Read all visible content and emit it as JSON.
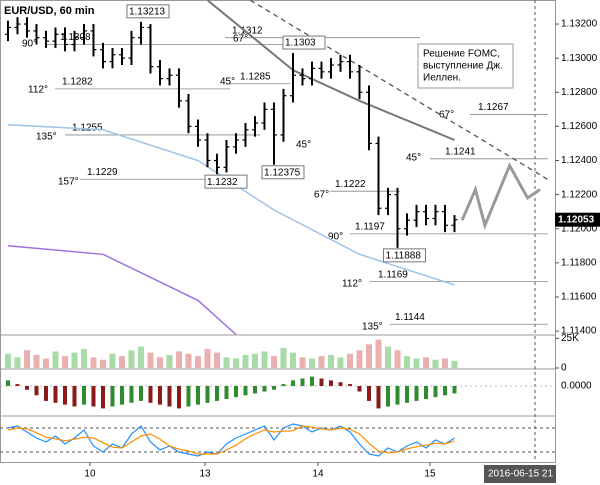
{
  "chart_data": {
    "type": "candlestick",
    "title": "EUR/USD, 60 min",
    "candles": {
      "open": [
        1.1314,
        1.1318,
        1.132,
        1.1316,
        1.1312,
        1.131,
        1.1314,
        1.1308,
        1.1312,
        1.1316,
        1.1305,
        1.1298,
        1.1302,
        1.13,
        1.1312,
        1.1318,
        1.1295,
        1.1288,
        1.129,
        1.1275,
        1.126,
        1.1252,
        1.124,
        1.1236,
        1.1248,
        1.1252,
        1.1258,
        1.1262,
        1.127,
        1.1255,
        1.1278,
        1.129,
        1.1288,
        1.1294,
        1.1292,
        1.1296,
        1.1298,
        1.1292,
        1.128,
        1.125,
        1.1212,
        1.122,
        1.12,
        1.1205,
        1.121,
        1.1206,
        1.121,
        1.1202
      ],
      "high": [
        1.1322,
        1.1324,
        1.1324,
        1.132,
        1.1316,
        1.1318,
        1.1318,
        1.1316,
        1.132,
        1.132,
        1.1309,
        1.1306,
        1.1306,
        1.1316,
        1.13213,
        1.132,
        1.1299,
        1.1294,
        1.1294,
        1.1279,
        1.1264,
        1.1256,
        1.1244,
        1.1252,
        1.1256,
        1.1262,
        1.1266,
        1.1274,
        1.1274,
        1.1282,
        1.1303,
        1.1294,
        1.1298,
        1.1298,
        1.13,
        1.1302,
        1.1302,
        1.1296,
        1.1284,
        1.1254,
        1.1224,
        1.1224,
        1.1209,
        1.1214,
        1.1214,
        1.1214,
        1.1214,
        1.1208
      ],
      "low": [
        1.131,
        1.1314,
        1.1312,
        1.1308,
        1.1306,
        1.1306,
        1.1304,
        1.1304,
        1.1308,
        1.1301,
        1.1294,
        1.1294,
        1.1296,
        1.1296,
        1.1308,
        1.1291,
        1.1284,
        1.1284,
        1.1271,
        1.1256,
        1.1248,
        1.1236,
        1.1232,
        1.1233,
        1.1244,
        1.1248,
        1.1254,
        1.1258,
        1.12375,
        1.1251,
        1.1274,
        1.1284,
        1.1284,
        1.1288,
        1.1288,
        1.1292,
        1.1288,
        1.1276,
        1.1246,
        1.1208,
        1.1208,
        1.11888,
        1.1196,
        1.1201,
        1.1202,
        1.1202,
        1.1198,
        1.1198
      ],
      "close": [
        1.1318,
        1.132,
        1.1316,
        1.1312,
        1.131,
        1.1314,
        1.1308,
        1.1312,
        1.1316,
        1.1305,
        1.1298,
        1.1302,
        1.13,
        1.1312,
        1.1318,
        1.1295,
        1.1288,
        1.129,
        1.1275,
        1.126,
        1.1252,
        1.124,
        1.1236,
        1.1248,
        1.1252,
        1.1258,
        1.1262,
        1.127,
        1.1255,
        1.1278,
        1.129,
        1.1288,
        1.1294,
        1.1292,
        1.1296,
        1.1298,
        1.1292,
        1.128,
        1.125,
        1.1212,
        1.122,
        1.12,
        1.1205,
        1.121,
        1.1206,
        1.121,
        1.1202,
        1.12053
      ],
      "color": "#000000"
    },
    "xlim": [
      -0.84,
      57.58
    ],
    "xticks": [
      {
        "value": 8.63,
        "label": "10"
      },
      {
        "value": 20.74,
        "label": "13"
      },
      {
        "value": 32.63,
        "label": "14"
      },
      {
        "value": 44.42,
        "label": "15"
      }
    ],
    "x_end_label": "2016-06-15 21",
    "ylim": [
      1.11377,
      1.13341
    ],
    "yticks": [
      {
        "value": 1.132,
        "label": "1.13200"
      },
      {
        "value": 1.13,
        "label": "1.13000"
      },
      {
        "value": 1.128,
        "label": "1.12800"
      },
      {
        "value": 1.126,
        "label": "1.12600"
      },
      {
        "value": 1.124,
        "label": "1.12400"
      },
      {
        "value": 1.122,
        "label": "1.12200"
      },
      {
        "value": 1.12,
        "label": "1.12000"
      },
      {
        "value": 1.118,
        "label": "1.11800"
      },
      {
        "value": 1.116,
        "label": "1.11600"
      },
      {
        "value": 1.114,
        "label": "1.11400"
      }
    ],
    "moving_averages": [
      {
        "color": "#777777",
        "x": [
          21,
          30,
          37,
          47
        ],
        "values": [
          1.1334,
          1.1293,
          1.1275,
          1.1252
        ]
      },
      {
        "color": "#9ec3e6",
        "x": [
          0,
          10,
          20,
          28,
          37,
          47
        ],
        "values": [
          1.1261,
          1.1258,
          1.124,
          1.1211,
          1.1185,
          1.1167
        ]
      },
      {
        "color": "#a070e0",
        "x": [
          0,
          10,
          20,
          24
        ],
        "values": [
          1.119,
          1.1185,
          1.1158,
          1.1138
        ]
      }
    ],
    "projection": {
      "color": "#9a9a9a",
      "x": [
        47.8,
        49.2,
        50.2,
        52.8,
        54.7,
        56
      ],
      "values": [
        1.1205,
        1.1223,
        1.1202,
        1.1237,
        1.1218,
        1.1223
      ]
    },
    "trendline": {
      "x": [
        25.5,
        56.8
      ],
      "values": [
        1.1334,
        1.1229
      ]
    },
    "levels": [
      1.1308,
      1.1282,
      1.1255,
      1.1229,
      1.1312,
      1.1285,
      1.1267,
      1.1241,
      1.1222,
      1.1197,
      1.1169,
      1.1144
    ],
    "angle_labels": [
      "90°",
      "112°",
      "135°",
      "157°",
      "67°",
      "45°",
      "45°",
      "67°",
      "90°",
      "112°",
      "135°",
      "67°",
      "45°"
    ],
    "note": [
      "Решение FOMC,",
      "выступление Дж.",
      "Иеллен."
    ],
    "volume": {
      "values": [
        12000,
        9000,
        15000,
        11000,
        8000,
        14000,
        10000,
        13000,
        16000,
        9000,
        7000,
        12000,
        10000,
        15000,
        18000,
        13000,
        9000,
        11000,
        14000,
        12000,
        10000,
        16000,
        13000,
        9000,
        8000,
        11000,
        12000,
        14000,
        10000,
        17000,
        13000,
        9000,
        8000,
        10000,
        11000,
        9000,
        12000,
        15000,
        20000,
        24000,
        18000,
        15000,
        10000,
        8000,
        9000,
        7000,
        8000,
        6000
      ],
      "ylim": [
        0,
        27000
      ],
      "yticks": [
        0,
        {
          "value": 25000,
          "label": "25K"
        }
      ],
      "up_color": "#a8dba8",
      "down_color": "#eab0b0"
    },
    "macd": {
      "values": [
        0.0003,
        0.0001,
        -0.0002,
        -0.0005,
        -0.0008,
        -0.0009,
        -0.001,
        -0.0011,
        -0.001,
        -0.0011,
        -0.0012,
        -0.0011,
        -0.001,
        -0.0009,
        -0.0008,
        -0.0009,
        -0.001,
        -0.0011,
        -0.0012,
        -0.0011,
        -0.001,
        -0.0009,
        -0.0008,
        -0.0007,
        -0.0006,
        -0.0005,
        -0.0004,
        -0.0003,
        -0.0002,
        0.0001,
        0.0003,
        0.0004,
        0.0005,
        0.0004,
        0.0003,
        0.0002,
        0.0001,
        -0.0003,
        -0.0008,
        -0.0012,
        -0.0011,
        -0.001,
        -0.0009,
        -0.0008,
        -0.0007,
        -0.0006,
        -0.0005,
        -0.0004
      ],
      "ylim": [
        -0.0015,
        0.0008
      ],
      "yticks": [
        {
          "value": 0,
          "label": "0.0000"
        }
      ],
      "up_color": "#2e8b2e",
      "down_color": "#8b1a1a"
    },
    "stochastic": {
      "ylim": [
        0,
        100
      ],
      "levels": [
        20,
        80
      ],
      "series": [
        {
          "color": "#1e90ff",
          "values": [
            80,
            85,
            70,
            55,
            45,
            60,
            40,
            55,
            75,
            35,
            20,
            40,
            30,
            65,
            85,
            45,
            25,
            35,
            20,
            15,
            10,
            20,
            15,
            40,
            55,
            65,
            75,
            85,
            50,
            80,
            90,
            85,
            70,
            80,
            75,
            85,
            70,
            40,
            15,
            10,
            30,
            20,
            35,
            45,
            30,
            50,
            40,
            55
          ]
        },
        {
          "color": "#ff8c00",
          "values": [
            75,
            80,
            78,
            68,
            57,
            53,
            48,
            52,
            57,
            55,
            43,
            32,
            30,
            45,
            60,
            65,
            52,
            35,
            27,
            23,
            15,
            15,
            15,
            25,
            37,
            53,
            65,
            75,
            70,
            72,
            73,
            85,
            82,
            78,
            75,
            80,
            77,
            65,
            42,
            22,
            18,
            20,
            28,
            33,
            37,
            42,
            40,
            48
          ]
        }
      ]
    }
  }
}
